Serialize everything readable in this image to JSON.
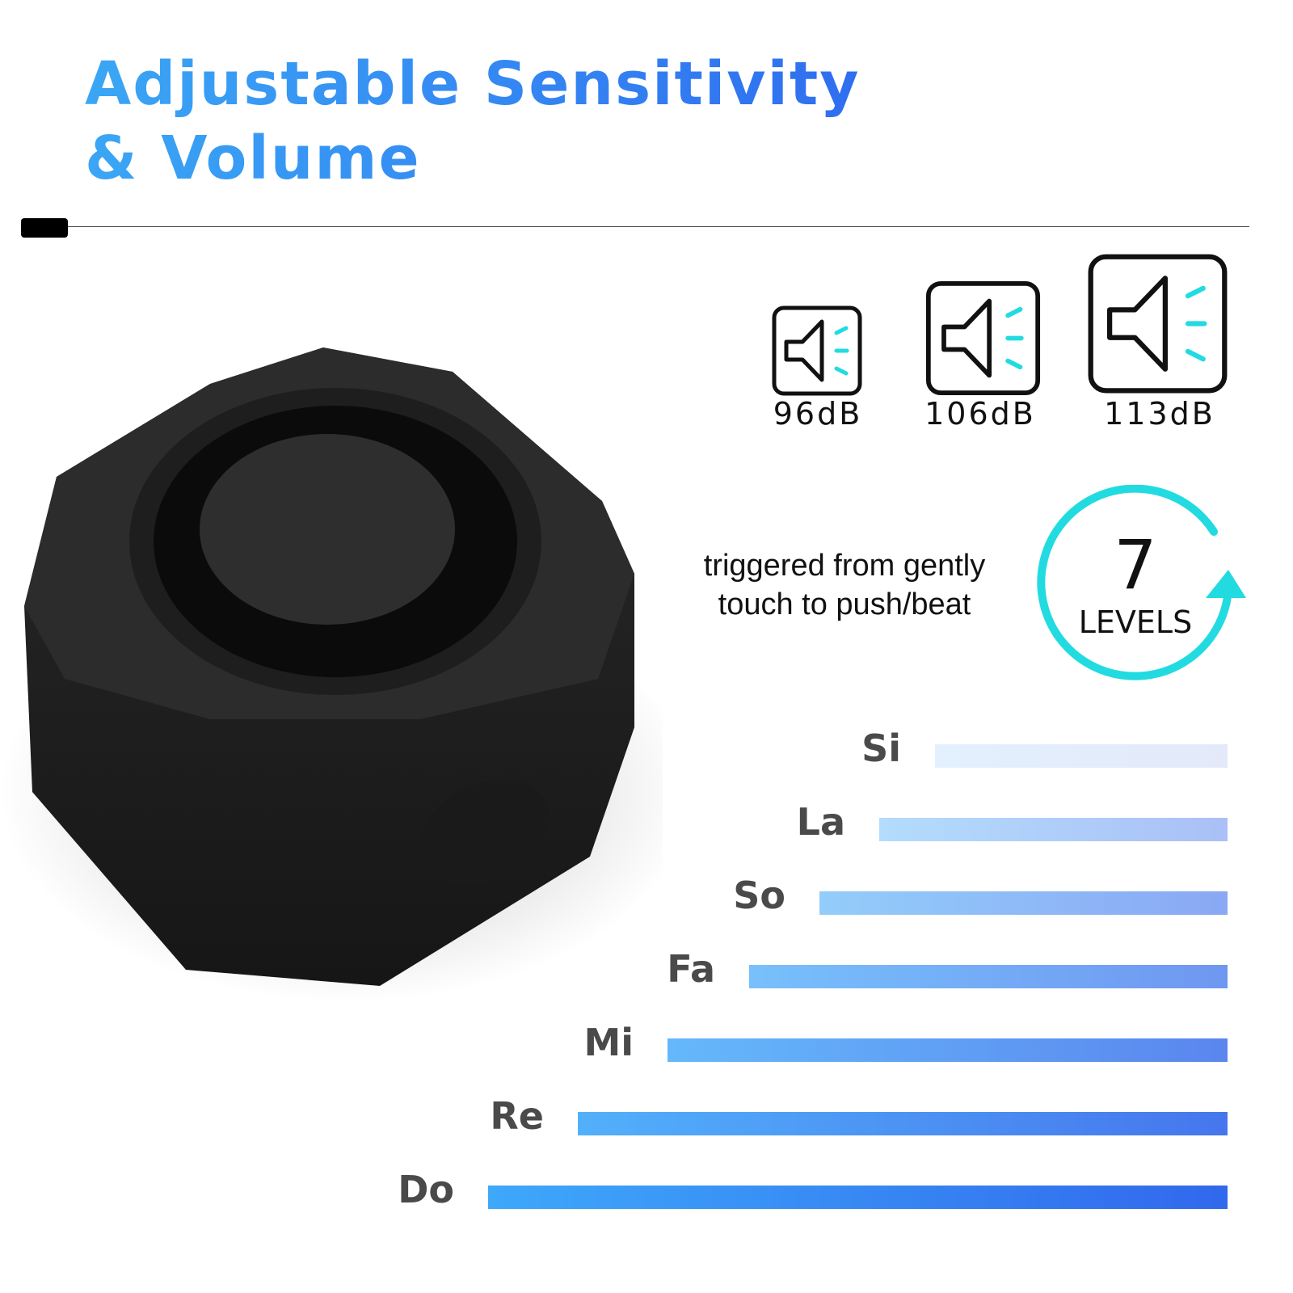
{
  "title": {
    "line1": "Adjustable Sensitivity",
    "line2": "& Volume"
  },
  "volumes": [
    {
      "label": "96dB",
      "icon": "speaker-icon"
    },
    {
      "label": "106dB",
      "icon": "speaker-icon"
    },
    {
      "label": "113dB",
      "icon": "speaker-icon"
    }
  ],
  "sensitivity": {
    "description_line1": "triggered from gently",
    "description_line2": "touch to push/beat",
    "levels_number": "7",
    "levels_word": "LEVELS"
  },
  "notes": [
    {
      "label": "Si",
      "colors": [
        "#e3f0fd",
        "#e3e9f9"
      ]
    },
    {
      "label": "La",
      "colors": [
        "#b3dcfd",
        "#aac0f6"
      ]
    },
    {
      "label": "So",
      "colors": [
        "#93cdfb",
        "#8aa8f4"
      ]
    },
    {
      "label": "Fa",
      "colors": [
        "#78c0fb",
        "#6f97f1"
      ]
    },
    {
      "label": "Mi",
      "colors": [
        "#65b8fb",
        "#5a86ee"
      ]
    },
    {
      "label": "Re",
      "colors": [
        "#52b0fa",
        "#4676ed"
      ]
    },
    {
      "label": "Do",
      "colors": [
        "#3ea8fa",
        "#3168ed"
      ]
    }
  ],
  "colors": {
    "accent_cyan": "#22dbe0",
    "title_blue": "#2f6ef0"
  }
}
